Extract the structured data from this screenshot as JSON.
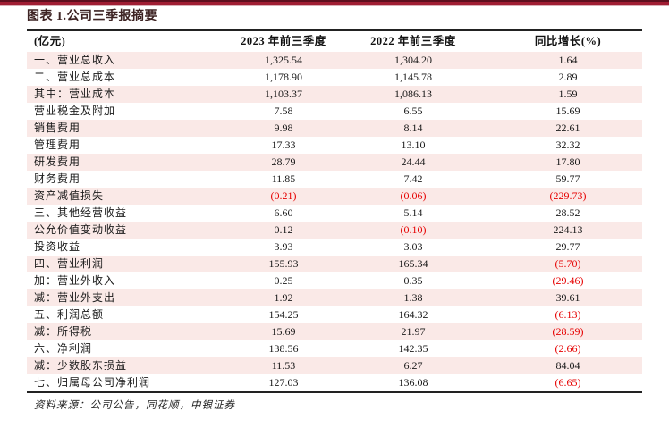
{
  "figure": {
    "title": "图表 1.公司三季报摘要",
    "source": "资料来源：公司公告，同花顺，中银证券"
  },
  "table": {
    "unit_label": "(亿元)",
    "columns": [
      "2023 年前三季度",
      "2022 年前三季度",
      "同比增长(%)"
    ],
    "rows": [
      {
        "label": "一、营业总收入",
        "y2023": "1,325.54",
        "y2022": "1,304.20",
        "yoy": "1.64"
      },
      {
        "label": "二、营业总成本",
        "y2023": "1,178.90",
        "y2022": "1,145.78",
        "yoy": "2.89"
      },
      {
        "label": "其中：营业成本",
        "y2023": "1,103.37",
        "y2022": "1,086.13",
        "yoy": "1.59"
      },
      {
        "label": "营业税金及附加",
        "y2023": "7.58",
        "y2022": "6.55",
        "yoy": "15.69"
      },
      {
        "label": "销售费用",
        "y2023": "9.98",
        "y2022": "8.14",
        "yoy": "22.61"
      },
      {
        "label": "管理费用",
        "y2023": "17.33",
        "y2022": "13.10",
        "yoy": "32.32"
      },
      {
        "label": "研发费用",
        "y2023": "28.79",
        "y2022": "24.44",
        "yoy": "17.80"
      },
      {
        "label": "财务费用",
        "y2023": "11.85",
        "y2022": "7.42",
        "yoy": "59.77"
      },
      {
        "label": "资产减值损失",
        "y2023": "(0.21)",
        "y2022": "(0.06)",
        "yoy": "(229.73)"
      },
      {
        "label": "三、其他经营收益",
        "y2023": "6.60",
        "y2022": "5.14",
        "yoy": "28.52"
      },
      {
        "label": "公允价值变动收益",
        "y2023": "0.12",
        "y2022": "(0.10)",
        "yoy": "224.13"
      },
      {
        "label": "投资收益",
        "y2023": "3.93",
        "y2022": "3.03",
        "yoy": "29.77"
      },
      {
        "label": "四、营业利润",
        "y2023": "155.93",
        "y2022": "165.34",
        "yoy": "(5.70)"
      },
      {
        "label": "加：营业外收入",
        "y2023": "0.25",
        "y2022": "0.35",
        "yoy": "(29.46)"
      },
      {
        "label": "减：营业外支出",
        "y2023": "1.92",
        "y2022": "1.38",
        "yoy": "39.61"
      },
      {
        "label": "五、利润总额",
        "y2023": "154.25",
        "y2022": "164.32",
        "yoy": "(6.13)"
      },
      {
        "label": "减：所得税",
        "y2023": "15.69",
        "y2022": "21.97",
        "yoy": "(28.59)"
      },
      {
        "label": "六、净利润",
        "y2023": "138.56",
        "y2022": "142.35",
        "yoy": "(2.66)"
      },
      {
        "label": "减：少数股东损益",
        "y2023": "11.53",
        "y2022": "6.27",
        "yoy": "84.04"
      },
      {
        "label": "七、归属母公司净利润",
        "y2023": "127.03",
        "y2022": "136.08",
        "yoy": "(6.65)"
      }
    ]
  },
  "colors": {
    "stripe_color": "#fae9e7",
    "negative_color": "#e60000",
    "accent_bar_dark": "#5e0f1e",
    "accent_bar_main": "#a01d33",
    "accent_bar_light": "#d9aeb6",
    "border_color": "#222222",
    "title_color": "#3d2323"
  }
}
